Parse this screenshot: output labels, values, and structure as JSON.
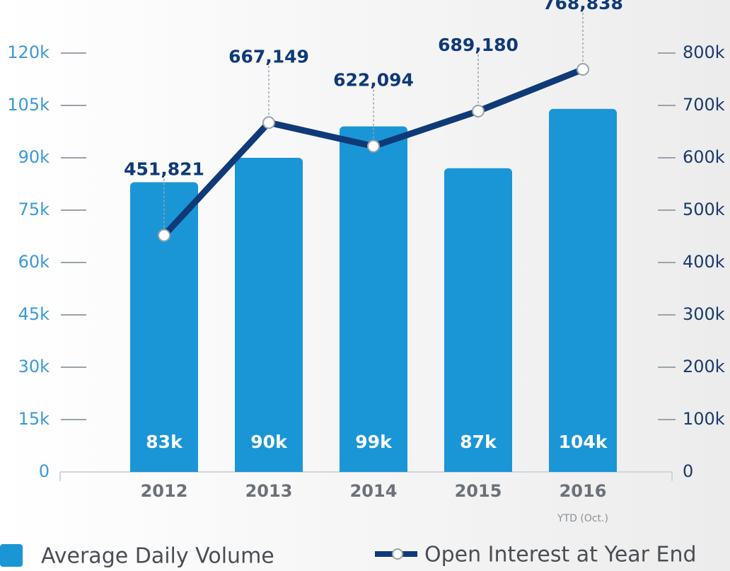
{
  "chart_data": {
    "type": "bar-line",
    "categories": [
      "2012",
      "2013",
      "2014",
      "2015",
      "2016"
    ],
    "x_note": "YTD (Oct.)",
    "series": [
      {
        "name": "Average Daily Volume",
        "type": "bar",
        "color": "#1a96d6",
        "values": [
          83000,
          90000,
          99000,
          87000,
          104000
        ],
        "value_labels": [
          "83k",
          "90k",
          "99k",
          "87k",
          "104k"
        ]
      },
      {
        "name": "Open Interest at Year End",
        "type": "line",
        "axis": "y2",
        "color": "#0e3a78",
        "values": [
          451821,
          667149,
          622094,
          689180,
          768838
        ],
        "value_labels": [
          "451,821",
          "667,149",
          "622,094",
          "689,180",
          "768,838"
        ]
      }
    ],
    "ylim": [
      0,
      120000
    ],
    "yticks": [
      0,
      {
        "value": 15000,
        "label": "15k"
      },
      {
        "value": 30000,
        "label": "30k"
      },
      {
        "value": 45000,
        "label": "45k"
      },
      {
        "value": 60000,
        "label": "60k"
      },
      {
        "value": 75000,
        "label": "75k"
      },
      {
        "value": 90000,
        "label": "90k"
      },
      {
        "value": 105000,
        "label": "105k"
      },
      {
        "value": 120000,
        "label": "120k"
      }
    ],
    "y2lim": [
      0,
      800000
    ],
    "y2ticks": [
      0,
      {
        "value": 100000,
        "label": "100k"
      },
      {
        "value": 200000,
        "label": "200k"
      },
      {
        "value": 300000,
        "label": "300k"
      },
      {
        "value": 400000,
        "label": "400k"
      },
      {
        "value": 500000,
        "label": "500k"
      },
      {
        "value": 600000,
        "label": "600k"
      },
      {
        "value": 700000,
        "label": "700k"
      },
      {
        "value": 800000,
        "label": "800k"
      }
    ],
    "ytick_color": "#3a9ad9",
    "y2tick_color": "#1a3a6b"
  }
}
